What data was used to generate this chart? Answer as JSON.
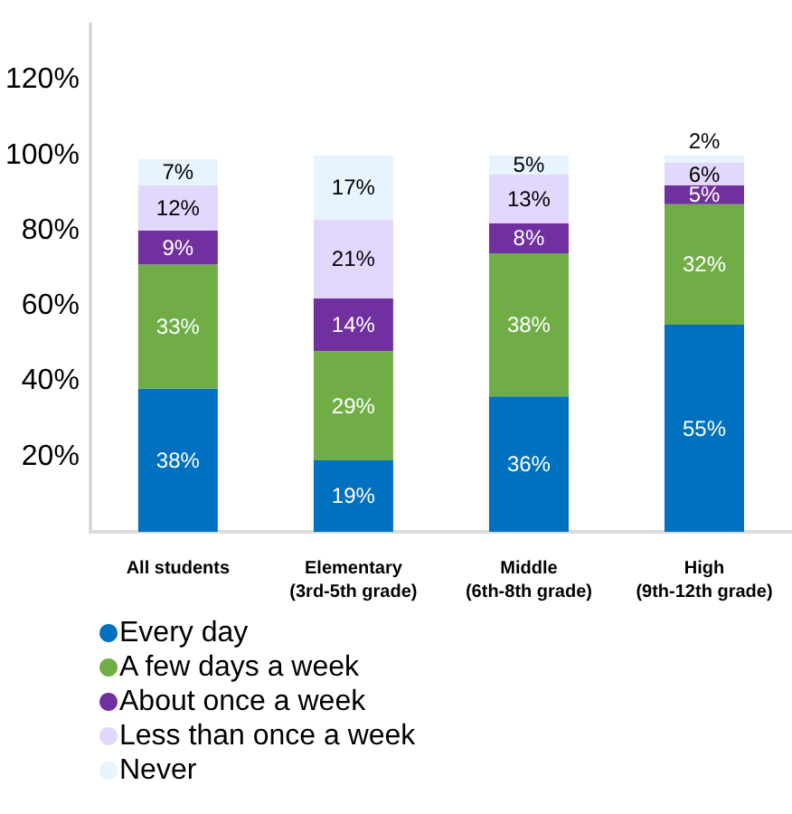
{
  "chart_data": {
    "type": "bar",
    "stacked": true,
    "categories": [
      "All students",
      "Elementary\n(3rd-5th grade)",
      "Middle\n(6th-8th grade)",
      "High\n(9th-12th grade)"
    ],
    "series": [
      {
        "name": "Every day",
        "color": "#0070c0",
        "values": [
          38,
          19,
          36,
          55
        ],
        "value_labels": [
          "38%",
          "19%",
          "36%",
          "55%"
        ]
      },
      {
        "name": "A few days a week",
        "color": "#70ad47",
        "values": [
          33,
          29,
          38,
          32
        ],
        "value_labels": [
          "33%",
          "29%",
          "38%",
          "32%"
        ]
      },
      {
        "name": "About once a week",
        "color": "#7030a0",
        "values": [
          9,
          14,
          8,
          5
        ],
        "value_labels": [
          "9%",
          "14%",
          "8%",
          "5%"
        ]
      },
      {
        "name": "Less than once a week",
        "color": "#e2d7fc",
        "values": [
          12,
          21,
          13,
          6
        ],
        "value_labels": [
          "12%",
          "21%",
          "13%",
          "6%"
        ]
      },
      {
        "name": "Never",
        "color": "#e7f3fd",
        "values": [
          7,
          17,
          5,
          2
        ],
        "value_labels": [
          "7%",
          "17%",
          "5%",
          "2%"
        ]
      }
    ],
    "ylim": [
      0,
      135
    ],
    "yticks": [
      {
        "value": 20,
        "label": "20%"
      },
      {
        "value": 40,
        "label": "40%"
      },
      {
        "value": 60,
        "label": "60%"
      },
      {
        "value": 80,
        "label": "80%"
      },
      {
        "value": 100,
        "label": "100%"
      },
      {
        "value": 120,
        "label": "120%"
      }
    ],
    "grid": false,
    "legend": "bottom left"
  }
}
